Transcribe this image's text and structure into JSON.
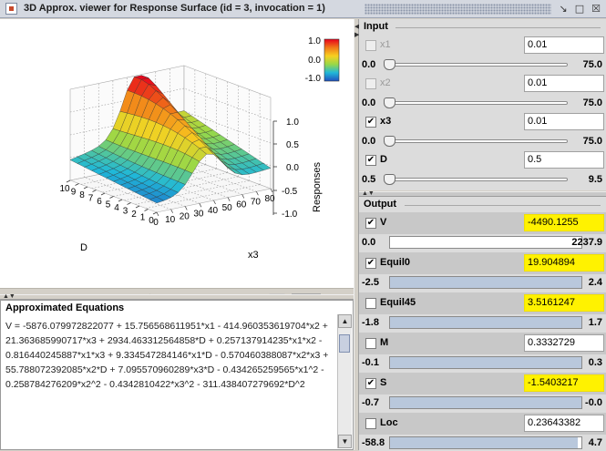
{
  "window": {
    "title": "3D Approx. viewer for Response Surface (id = 3, invocation = 1)",
    "buttons": [
      "minimize-icon",
      "maximize-icon",
      "close-icon"
    ]
  },
  "plot": {
    "legend_ticks": [
      "1.0",
      "0.0",
      "-1.0"
    ],
    "legend_colors": [
      "#e8001c",
      "#f07818",
      "#f8d020",
      "#98d848",
      "#20b8d8",
      "#2050c0"
    ],
    "z_label": "Responses",
    "z_ticks": [
      "1.0",
      "0.5",
      "0.0",
      "-0.5",
      "-1.0"
    ],
    "x_label": "x3",
    "x_ticks": [
      "0",
      "10",
      "20",
      "30",
      "40",
      "50",
      "60",
      "70",
      "80"
    ],
    "y_label": "D",
    "y_ticks": [
      "10",
      "9",
      "8",
      "7",
      "6",
      "5",
      "4",
      "3",
      "2",
      "1",
      "0"
    ]
  },
  "toolbar": {
    "icons": [
      "fit-icon",
      "rotate-icon",
      "zoom-icon",
      "scale-vertical-icon",
      "mesh-surface-icon",
      "colored-surface-icon",
      "contour-surface-icon",
      "colorbar-icon",
      "wireframe-icon"
    ],
    "grid_value": "10"
  },
  "equations": {
    "title": "Approximated Equations",
    "text": "V = -5876.079972822077 + 15.756568611951*x1 - 414.960353619704*x2 + 21.363685990717*x3 + 2934.463312564858*D + 0.257137914235*x1*x2 - 0.816440245887*x1*x3 + 9.334547284146*x1*D - 0.570460388087*x2*x3 + 55.788072392085*x2*D + 7.095570960289*x3*D - 0.434265259565*x1^2 - 0.258784276209*x2^2 - 0.4342810422*x3^2 - 311.438407279692*D^2"
  },
  "input": {
    "title": "Input",
    "variables": [
      {
        "name": "x1",
        "checked": false,
        "enabled": false,
        "value": "0.01",
        "min": "0.0",
        "max": "75.0",
        "position": 0.0
      },
      {
        "name": "x2",
        "checked": false,
        "enabled": false,
        "value": "0.01",
        "min": "0.0",
        "max": "75.0",
        "position": 0.0
      },
      {
        "name": "x3",
        "checked": true,
        "enabled": true,
        "value": "0.01",
        "min": "0.0",
        "max": "75.0",
        "position": 0.0
      },
      {
        "name": "D",
        "checked": true,
        "enabled": true,
        "value": "0.5",
        "min": "0.5",
        "max": "9.5",
        "position": 0.0
      }
    ]
  },
  "output": {
    "title": "Output",
    "responses": [
      {
        "name": "V",
        "checked": true,
        "value": "-4490.1255",
        "highlight": true,
        "min": "0.0",
        "max": "2237.9",
        "fill": 0.0
      },
      {
        "name": "Equil0",
        "checked": true,
        "value": "19.904894",
        "highlight": true,
        "min": "-2.5",
        "max": "2.4",
        "fill": 1.0
      },
      {
        "name": "Equil45",
        "checked": false,
        "value": "3.5161247",
        "highlight": true,
        "min": "-1.8",
        "max": "1.7",
        "fill": 1.0
      },
      {
        "name": "M",
        "checked": false,
        "value": "0.3332729",
        "highlight": false,
        "min": "-0.1",
        "max": "0.3",
        "fill": 1.0
      },
      {
        "name": "S",
        "checked": true,
        "value": "-1.5403217",
        "highlight": true,
        "min": "-0.7",
        "max": "-0.0",
        "fill": 1.0
      },
      {
        "name": "Loc",
        "checked": false,
        "value": "0.23643382",
        "highlight": false,
        "min": "-58.8",
        "max": "4.7",
        "fill": 0.98
      }
    ]
  }
}
